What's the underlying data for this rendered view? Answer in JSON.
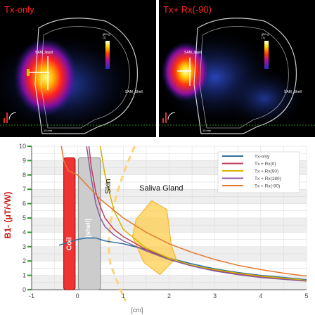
{
  "panels": [
    {
      "title": "Tx-only",
      "liquid_label": "SAM_liquid",
      "shell_label": "SAM_Shell",
      "colorbar_label": "[|B1-|]\n[T]",
      "scale_label": "10 mm"
    },
    {
      "title": "Tx+ Rx(-90)",
      "liquid_label": "SAM_liquid",
      "shell_label": "SAM_Shell",
      "colorbar_label": "[|B1-|]\n[T]",
      "scale_label": "10 mm"
    }
  ],
  "chart_data": {
    "type": "line",
    "title": "",
    "xlabel": "[cm]",
    "ylabel": "B1- (μT/√W)",
    "xlim": [
      -1,
      5
    ],
    "ylim": [
      0,
      10
    ],
    "xticks": [
      "-1",
      "0",
      "1",
      "2",
      "3",
      "4",
      "5"
    ],
    "yticks": [
      "0",
      "1",
      "2",
      "3",
      "4",
      "5",
      "6",
      "7",
      "8",
      "9",
      "10"
    ],
    "grid": true,
    "legend_position": "top-right",
    "series": [
      {
        "name": "Tx-only",
        "color": "#2f6f9f",
        "x": [
          -0.4,
          -0.2,
          0.0,
          0.2,
          0.4,
          0.6,
          0.8,
          1.0,
          1.5,
          2.0,
          2.5,
          3.0,
          3.5,
          4.0,
          4.5,
          5.0
        ],
        "y": [
          3.1,
          3.3,
          3.5,
          3.6,
          3.6,
          3.4,
          3.3,
          3.2,
          2.8,
          2.2,
          1.8,
          1.45,
          1.2,
          1.0,
          0.85,
          0.7
        ]
      },
      {
        "name": "Tx + Rx(0)",
        "color": "#c0405a",
        "x": [
          0.25,
          0.3,
          0.4,
          0.5,
          0.6,
          0.8,
          1.0,
          1.5,
          2.0,
          2.5,
          3.0,
          3.5,
          4.0,
          4.5,
          5.0
        ],
        "y": [
          10.0,
          8.6,
          6.8,
          5.8,
          5.0,
          4.2,
          3.7,
          2.8,
          2.1,
          1.7,
          1.35,
          1.1,
          0.9,
          0.75,
          0.6
        ]
      },
      {
        "name": "Tx + Rx(90)",
        "color": "#d4b400",
        "x": [
          0.5,
          0.6,
          0.8,
          1.0,
          1.5,
          2.0,
          2.5,
          3.0,
          3.5,
          4.0,
          4.5,
          5.0
        ],
        "y": [
          10.0,
          8.0,
          5.5,
          4.2,
          2.9,
          2.2,
          1.7,
          1.4,
          1.15,
          0.95,
          0.8,
          0.65
        ]
      },
      {
        "name": "Tx + Rx(180)",
        "color": "#8a5a9a",
        "x": [
          0.2,
          0.3,
          0.4,
          0.5,
          0.6,
          0.8,
          1.0,
          1.5,
          2.0,
          2.5,
          3.0,
          3.5,
          4.0,
          4.5,
          5.0
        ],
        "y": [
          10.0,
          7.8,
          6.0,
          5.0,
          4.4,
          3.8,
          3.4,
          2.7,
          2.1,
          1.65,
          1.3,
          1.05,
          0.85,
          0.72,
          0.6
        ]
      },
      {
        "name": "Tx + Rx(-90)",
        "color": "#e07a30",
        "x": [
          -0.35,
          -0.3,
          -0.2,
          0.0,
          0.5,
          1.0,
          1.5,
          2.0,
          2.5,
          3.0,
          3.5,
          4.0,
          4.5,
          5.0
        ],
        "y": [
          10.0,
          9.0,
          8.3,
          8.0,
          6.3,
          5.0,
          4.0,
          3.2,
          2.6,
          2.1,
          1.7,
          1.4,
          1.15,
          0.95
        ]
      }
    ],
    "annotations": {
      "coil": "Coil",
      "shell": "[shell]",
      "skin": "Skin",
      "saliva_gland": "Saliva Gland"
    }
  }
}
